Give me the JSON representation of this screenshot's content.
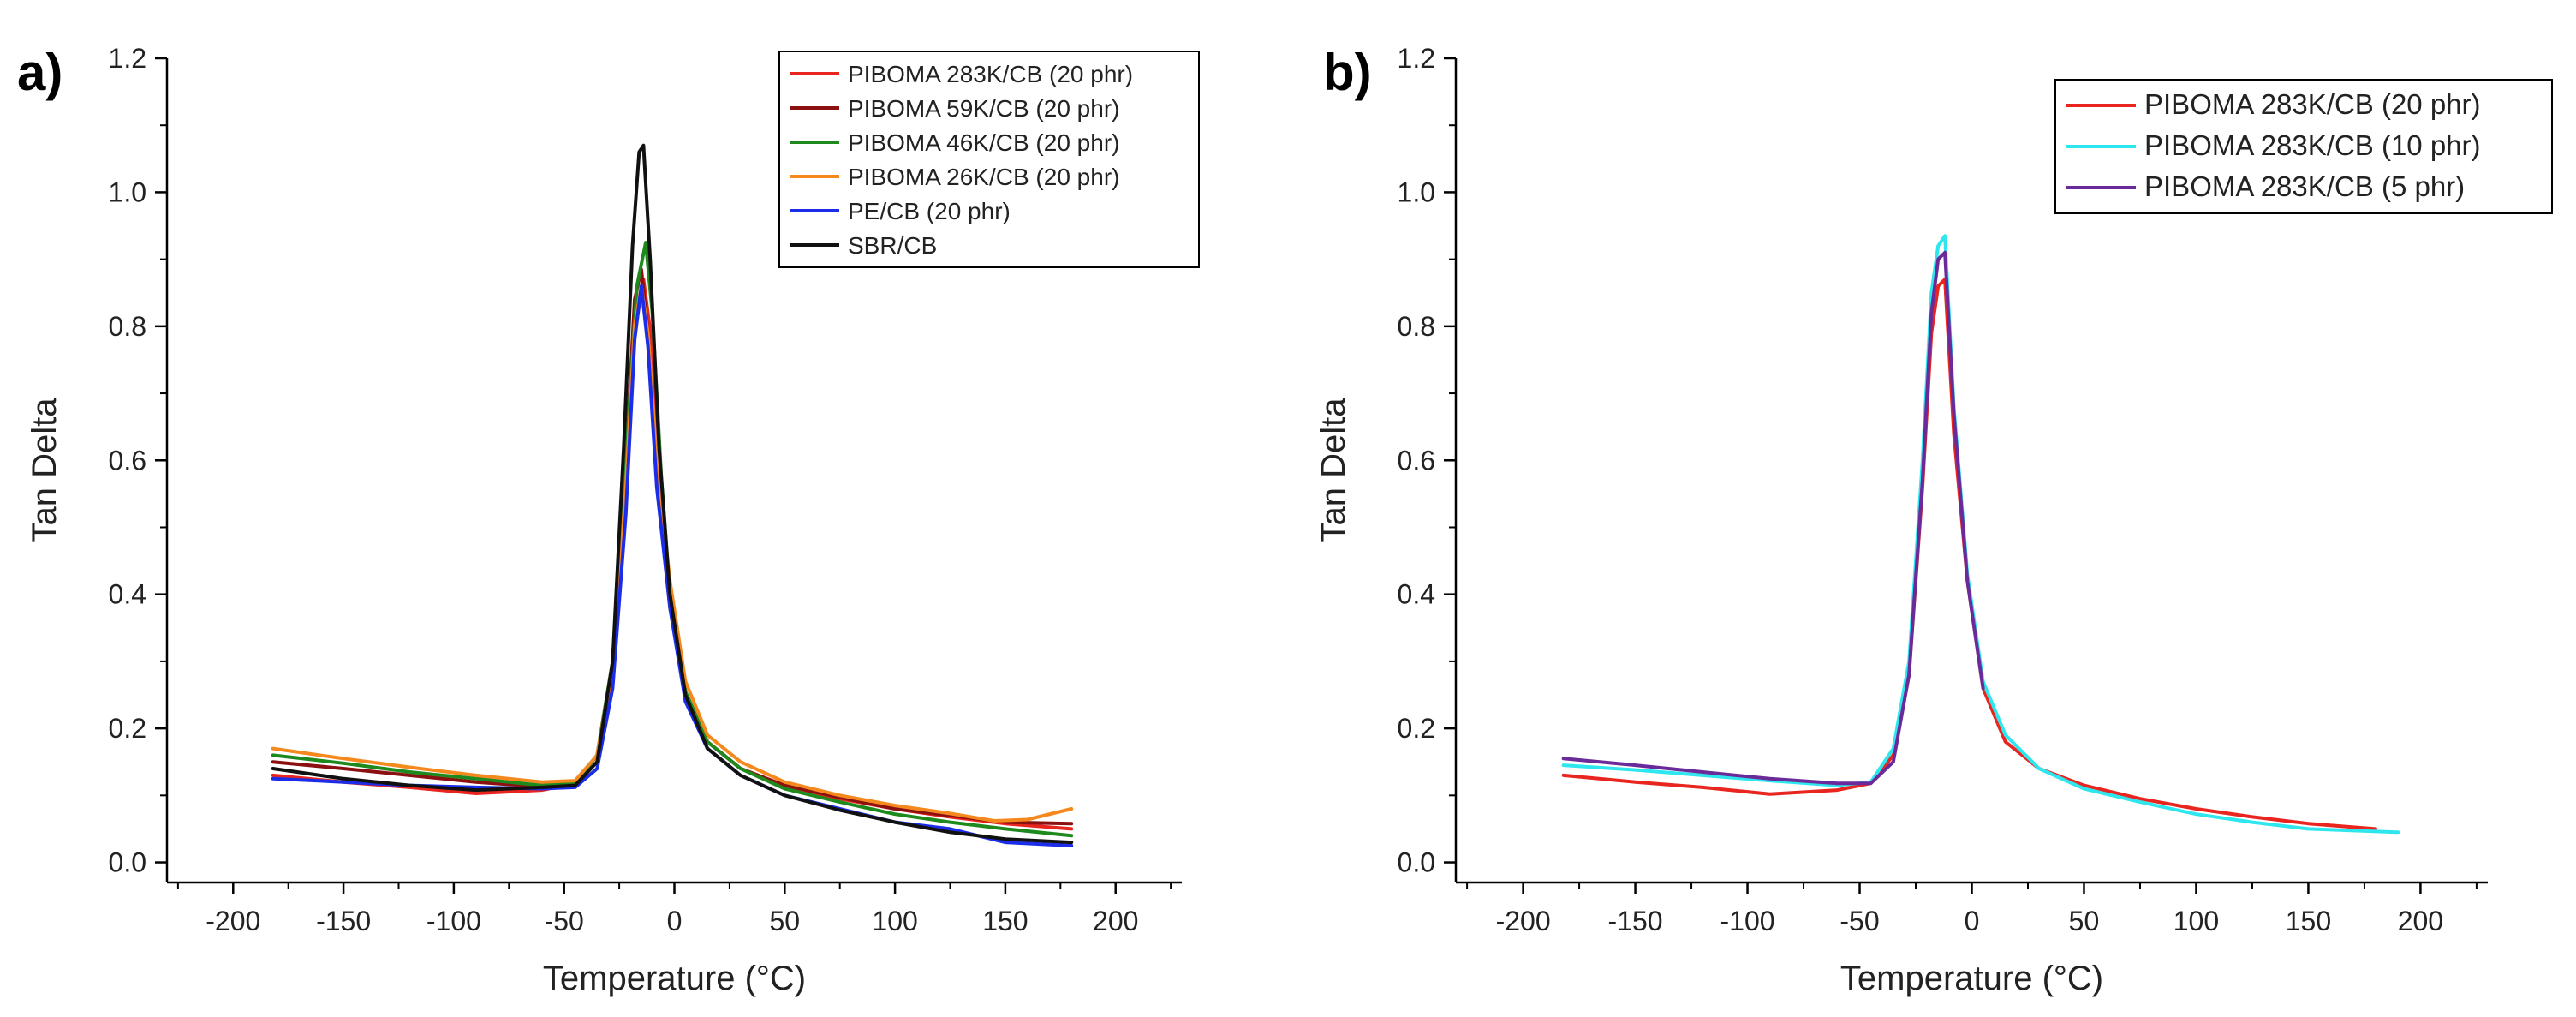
{
  "chart_data": [
    {
      "type": "line",
      "panel_label": "a)",
      "title": "",
      "xlabel": "Temperature (°C)",
      "ylabel": "Tan Delta",
      "xlim": [
        -230,
        230
      ],
      "ylim": [
        -0.03,
        1.2
      ],
      "xticks": [
        -200,
        -150,
        -100,
        -50,
        0,
        50,
        100,
        150,
        200
      ],
      "yticks": [
        0.0,
        0.2,
        0.4,
        0.6,
        0.8,
        1.0,
        1.2
      ],
      "xtick_labels": [
        "-200",
        "-150",
        "-100",
        "-50",
        "0",
        "50",
        "100",
        "150",
        "200"
      ],
      "ytick_labels": [
        "0.0",
        "0.2",
        "0.4",
        "0.6",
        "0.8",
        "1.0",
        "1.2"
      ],
      "legend_position": "top-right",
      "series": [
        {
          "name": "PIBOMA 283K/CB (20 phr)",
          "color": "#e8261f",
          "x": [
            -182,
            -150,
            -120,
            -90,
            -60,
            -45,
            -35,
            -28,
            -22,
            -18,
            -14,
            -10,
            -6,
            -2,
            5,
            15,
            30,
            50,
            75,
            100,
            125,
            150,
            180
          ],
          "y": [
            0.13,
            0.12,
            0.112,
            0.103,
            0.108,
            0.118,
            0.16,
            0.28,
            0.56,
            0.79,
            0.87,
            0.77,
            0.56,
            0.4,
            0.25,
            0.18,
            0.14,
            0.115,
            0.095,
            0.08,
            0.068,
            0.058,
            0.05
          ]
        },
        {
          "name": "PIBOMA 59K/CB (20 phr)",
          "color": "#8b1010",
          "x": [
            -182,
            -150,
            -120,
            -90,
            -60,
            -45,
            -35,
            -28,
            -22,
            -18,
            -15,
            -12,
            -8,
            -2,
            5,
            15,
            30,
            50,
            75,
            100,
            125,
            150,
            180
          ],
          "y": [
            0.15,
            0.14,
            0.13,
            0.12,
            0.113,
            0.118,
            0.16,
            0.3,
            0.6,
            0.84,
            0.885,
            0.79,
            0.57,
            0.38,
            0.25,
            0.18,
            0.14,
            0.115,
            0.097,
            0.08,
            0.07,
            0.06,
            0.058
          ]
        },
        {
          "name": "PIBOMA 46K/CB (20 phr)",
          "color": "#1e8a1e",
          "x": [
            -182,
            -150,
            -120,
            -90,
            -60,
            -45,
            -35,
            -28,
            -22,
            -17,
            -13,
            -10,
            -6,
            -2,
            5,
            15,
            30,
            50,
            75,
            100,
            125,
            150,
            180
          ],
          "y": [
            0.16,
            0.148,
            0.135,
            0.125,
            0.115,
            0.118,
            0.16,
            0.3,
            0.6,
            0.86,
            0.925,
            0.82,
            0.58,
            0.4,
            0.255,
            0.18,
            0.14,
            0.11,
            0.09,
            0.072,
            0.06,
            0.05,
            0.04
          ]
        },
        {
          "name": "PIBOMA 26K/CB (20 phr)",
          "color": "#f5891e",
          "x": [
            -182,
            -150,
            -120,
            -90,
            -60,
            -45,
            -35,
            -28,
            -22,
            -18,
            -15,
            -12,
            -8,
            -2,
            5,
            15,
            30,
            50,
            75,
            100,
            125,
            145,
            160,
            180
          ],
          "y": [
            0.17,
            0.155,
            0.142,
            0.13,
            0.12,
            0.122,
            0.16,
            0.29,
            0.56,
            0.8,
            0.86,
            0.79,
            0.6,
            0.42,
            0.27,
            0.19,
            0.15,
            0.12,
            0.1,
            0.085,
            0.073,
            0.062,
            0.064,
            0.08
          ]
        },
        {
          "name": "PE/CB (20 phr)",
          "color": "#1b2de8",
          "x": [
            -182,
            -150,
            -120,
            -90,
            -60,
            -45,
            -35,
            -28,
            -22,
            -18,
            -15,
            -12,
            -8,
            -2,
            5,
            15,
            30,
            50,
            75,
            100,
            125,
            150,
            180
          ],
          "y": [
            0.125,
            0.12,
            0.115,
            0.112,
            0.11,
            0.112,
            0.14,
            0.26,
            0.52,
            0.78,
            0.86,
            0.77,
            0.56,
            0.38,
            0.24,
            0.17,
            0.13,
            0.1,
            0.08,
            0.06,
            0.05,
            0.03,
            0.025
          ]
        },
        {
          "name": "SBR/CB",
          "color": "#111111",
          "x": [
            -182,
            -150,
            -120,
            -90,
            -60,
            -45,
            -35,
            -28,
            -23,
            -19,
            -16,
            -14,
            -11,
            -7,
            -2,
            5,
            15,
            30,
            50,
            75,
            100,
            125,
            150,
            180
          ],
          "y": [
            0.14,
            0.125,
            0.115,
            0.108,
            0.112,
            0.115,
            0.15,
            0.3,
            0.62,
            0.92,
            1.06,
            1.07,
            0.9,
            0.62,
            0.4,
            0.25,
            0.17,
            0.13,
            0.1,
            0.078,
            0.06,
            0.045,
            0.035,
            0.03
          ]
        }
      ]
    },
    {
      "type": "line",
      "panel_label": "b)",
      "title": "",
      "xlabel": "Temperature (°C)",
      "ylabel": "Tan Delta",
      "xlim": [
        -230,
        230
      ],
      "ylim": [
        -0.03,
        1.2
      ],
      "xticks": [
        -200,
        -150,
        -100,
        -50,
        0,
        50,
        100,
        150,
        200
      ],
      "yticks": [
        0.0,
        0.2,
        0.4,
        0.6,
        0.8,
        1.0,
        1.2
      ],
      "xtick_labels": [
        "-200",
        "-150",
        "-100",
        "-50",
        "0",
        "50",
        "100",
        "150",
        "200"
      ],
      "ytick_labels": [
        "0.0",
        "0.2",
        "0.4",
        "0.6",
        "0.8",
        "1.0",
        "1.2"
      ],
      "legend_position": "top-right",
      "series": [
        {
          "name": "PIBOMA 283K/CB (20 phr)",
          "color": "#e8261f",
          "x": [
            -182,
            -150,
            -120,
            -90,
            -60,
            -45,
            -35,
            -28,
            -22,
            -18,
            -15,
            -12,
            -8,
            -2,
            5,
            15,
            30,
            50,
            75,
            100,
            125,
            150,
            180
          ],
          "y": [
            0.13,
            0.12,
            0.112,
            0.102,
            0.108,
            0.118,
            0.16,
            0.28,
            0.56,
            0.79,
            0.86,
            0.87,
            0.64,
            0.42,
            0.26,
            0.18,
            0.14,
            0.115,
            0.095,
            0.08,
            0.068,
            0.058,
            0.05
          ]
        },
        {
          "name": "PIBOMA 283K/CB (10 phr)",
          "color": "#2ee6ee",
          "x": [
            -182,
            -150,
            -120,
            -90,
            -60,
            -45,
            -35,
            -28,
            -22,
            -18,
            -15,
            -12,
            -8,
            -2,
            5,
            15,
            30,
            50,
            75,
            100,
            125,
            150,
            190
          ],
          "y": [
            0.145,
            0.138,
            0.13,
            0.122,
            0.115,
            0.12,
            0.17,
            0.3,
            0.6,
            0.85,
            0.92,
            0.935,
            0.68,
            0.43,
            0.27,
            0.19,
            0.14,
            0.11,
            0.09,
            0.072,
            0.06,
            0.05,
            0.045
          ]
        },
        {
          "name": "PIBOMA 283K/CB (5 phr)",
          "color": "#6a2a9a",
          "x": [
            -182,
            -150,
            -120,
            -90,
            -60,
            -45,
            -35,
            -28,
            -22,
            -18,
            -15,
            -12,
            -8,
            -2,
            5
          ],
          "y": [
            0.155,
            0.145,
            0.135,
            0.125,
            0.118,
            0.118,
            0.15,
            0.28,
            0.57,
            0.82,
            0.9,
            0.91,
            0.67,
            0.42,
            0.26
          ]
        }
      ]
    }
  ]
}
